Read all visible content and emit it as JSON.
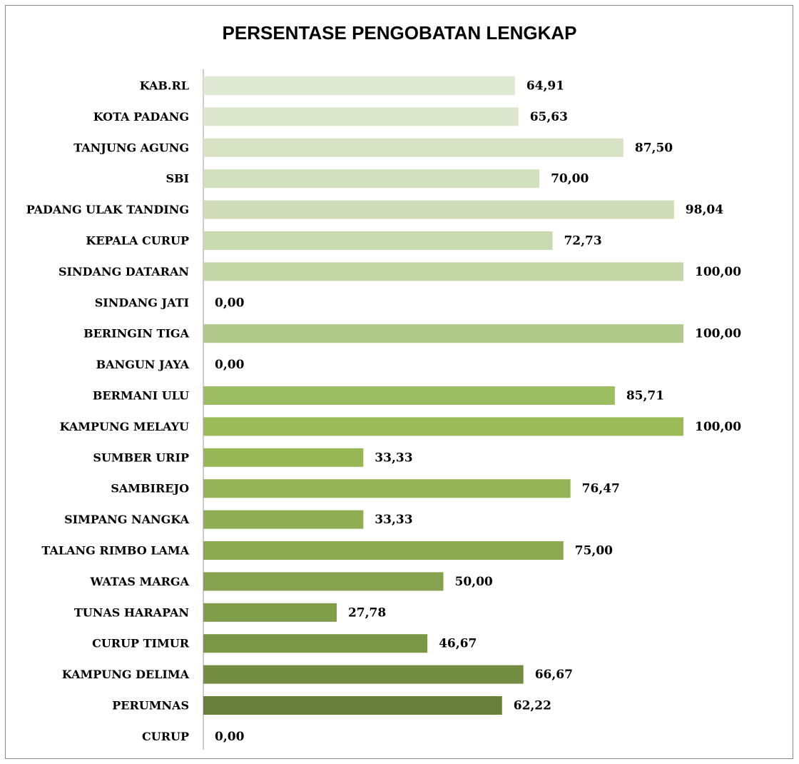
{
  "chart_data": {
    "type": "barh",
    "title": "PERSENTASE PENGOBATAN LENGKAP",
    "categories": [
      "KAB.RL",
      "KOTA PADANG",
      "TANJUNG AGUNG",
      "SBI",
      "PADANG ULAK TANDING",
      "KEPALA CURUP",
      "SINDANG DATARAN",
      "SINDANG JATI",
      "BERINGIN TIGA",
      "BANGUN JAYA",
      "BERMANI ULU",
      "KAMPUNG MELAYU",
      "SUMBER URIP",
      "SAMBIREJO",
      "SIMPANG NANGKA",
      "TALANG RIMBO LAMA",
      "WATAS MARGA",
      "TUNAS HARAPAN",
      "CURUP TIMUR",
      "KAMPUNG DELIMA",
      "PERUMNAS",
      "CURUP"
    ],
    "values": [
      64.91,
      65.63,
      87.5,
      70,
      98.04,
      72.73,
      100,
      0,
      100,
      0,
      85.71,
      100,
      33.33,
      76.47,
      33.33,
      75,
      50,
      27.78,
      46.67,
      66.67,
      62.22,
      0
    ],
    "value_labels": [
      "64,91",
      "65,63",
      "87,50",
      "70,00",
      "98,04",
      "72,73",
      "100,00",
      "0,00",
      "100,00",
      "0,00",
      "85,71",
      "100,00",
      "33,33",
      "76,47",
      "33,33",
      "75,00",
      "50,00",
      "27,78",
      "46,67",
      "66,67",
      "62,22",
      "0,00"
    ],
    "colors": [
      "#e0e9d4",
      "#dce6cd",
      "#d8e3c6",
      "#d3e0bf",
      "#cfdcb7",
      "#cadab0",
      "#c4d6a6",
      "#bbd09a",
      "#b0c98b",
      "#a5c27a",
      "#9dbd62",
      "#9bbb59",
      "#97b757",
      "#93b356",
      "#8fae54",
      "#8aa951",
      "#85a34e",
      "#809e4a",
      "#7a9746",
      "#738e42",
      "#6b7f3c",
      "#647538"
    ],
    "xlim": [
      0,
      100
    ]
  }
}
